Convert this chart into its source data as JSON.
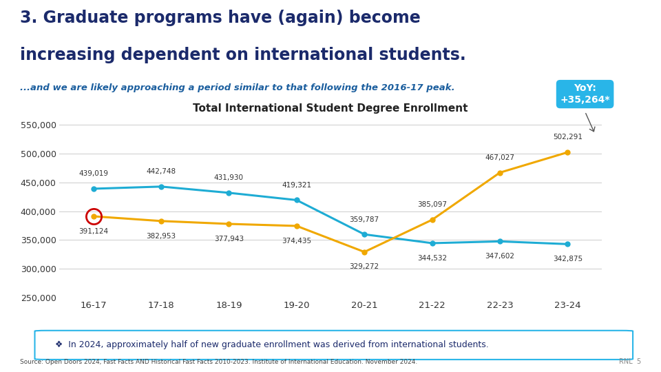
{
  "title": "Total International Student Degree Enrollment",
  "main_title_line1": "3. Graduate programs have (again) become",
  "main_title_line2": "increasing dependent on international students.",
  "subtitle": "...and we are likely approaching a period similar to that following the 2016-17 peak.",
  "x_labels": [
    "16-17",
    "17-18",
    "18-19",
    "19-20",
    "20-21",
    "21-22",
    "22-23",
    "23-24"
  ],
  "undergrad": [
    439019,
    442748,
    431930,
    419321,
    359787,
    344532,
    347602,
    342875
  ],
  "grad": [
    391124,
    382953,
    377943,
    374435,
    329272,
    385097,
    467027,
    502291
  ],
  "undergrad_color": "#1EACD4",
  "grad_color": "#F0A800",
  "ymin": 250000,
  "ymax": 560000,
  "yticks": [
    250000,
    300000,
    350000,
    400000,
    450000,
    500000,
    550000
  ],
  "ytick_labels": [
    "250,000",
    "300,000",
    "350,000",
    "400,000",
    "450,000",
    "500,000",
    "550,000"
  ],
  "yoy_text": "YoY:\n+35,264*",
  "yoy_box_color": "#29B5E8",
  "note_text": "❖  In 2024, approximately half of new graduate enrollment was derived from international students.",
  "note_border_color": "#29B5E8",
  "source_text": "Source: Open Doors 2024, Fast Facts AND Historical Fast Facts 2010-2023. Institute of International Education. November 2024.",
  "page_num": "RNL  5",
  "background_color": "#FFFFFF",
  "title_color": "#1B2A6B",
  "subtitle_color": "#1B5E9E",
  "grid_color": "#CCCCCC",
  "circle_highlight_color": "#CC0000",
  "undergrad_label_offsets": [
    12,
    12,
    12,
    12,
    12,
    -12,
    -12,
    -12
  ],
  "grad_label_offsets": [
    -12,
    -12,
    -12,
    -12,
    -12,
    12,
    12,
    12
  ]
}
